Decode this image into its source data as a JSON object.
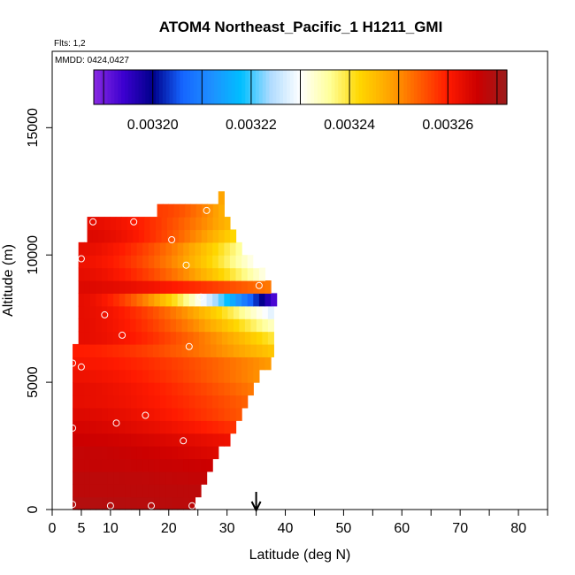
{
  "chart_data": {
    "type": "heatmap",
    "title": "ATOM4 Northeast_Pacific_1 H1211_GMI",
    "flights_label": "Flts: 1,2",
    "dates_label": "MMDD: 0424,0427",
    "xlabel": "Latitude (deg N)",
    "ylabel": "Altitude (m)",
    "xlim": [
      0,
      85
    ],
    "ylim": [
      0,
      18000
    ],
    "x_ticks": [
      0,
      5,
      10,
      20,
      30,
      40,
      50,
      60,
      70,
      80
    ],
    "x_minor_ticks": [
      15,
      25,
      35,
      45,
      55,
      65,
      75,
      85
    ],
    "y_ticks": [
      0,
      5000,
      10000,
      15000
    ],
    "colorbar": {
      "min": 0.003188,
      "max": 0.003272,
      "ticks": [
        0.0032,
        0.00322,
        0.00324,
        0.00326
      ],
      "tick_labels": [
        "0.00320",
        "0.00322",
        "0.00324",
        "0.00326"
      ],
      "colors": [
        "#8a2be2",
        "#3c00d0",
        "#00008b",
        "#1565ff",
        "#1e90ff",
        "#00bfff",
        "#b0dcff",
        "#ffffff",
        "#ffff99",
        "#ffd700",
        "#ffa500",
        "#ff6000",
        "#ff1a00",
        "#cc0000",
        "#9b1c1c"
      ]
    },
    "arrow_latitude": 35,
    "altitude_bins": [
      {
        "alt": [
          0,
          500
        ],
        "lat": [
          3.5,
          24.5
        ],
        "values": [
          0.003269,
          0.003268
        ]
      },
      {
        "alt": [
          500,
          1000
        ],
        "lat": [
          3.5,
          25.5
        ],
        "values": [
          0.003268,
          0.003268
        ]
      },
      {
        "alt": [
          1000,
          1500
        ],
        "lat": [
          3.5,
          26.5
        ],
        "values": [
          0.003268,
          0.003267
        ]
      },
      {
        "alt": [
          1500,
          2000
        ],
        "lat": [
          3.5,
          27.5
        ],
        "values": [
          0.003267,
          0.003266
        ]
      },
      {
        "alt": [
          2000,
          2500
        ],
        "lat": [
          3.5,
          28.5
        ],
        "values": [
          0.003267,
          0.003264
        ]
      },
      {
        "alt": [
          2500,
          3000
        ],
        "lat": [
          3.5,
          30.5
        ],
        "values": [
          0.003266,
          0.003262
        ]
      },
      {
        "alt": [
          3000,
          3500
        ],
        "lat": [
          3.5,
          31.5
        ],
        "values": [
          0.003265,
          0.003258
        ]
      },
      {
        "alt": [
          3500,
          4000
        ],
        "lat": [
          3.5,
          32.5
        ],
        "values": [
          0.003264,
          0.003255
        ]
      },
      {
        "alt": [
          4000,
          4500
        ],
        "lat": [
          3.5,
          33.5
        ],
        "values": [
          0.003263,
          0.003254
        ]
      },
      {
        "alt": [
          4500,
          5000
        ],
        "lat": [
          3.5,
          34.5
        ],
        "values": [
          0.003263,
          0.003252
        ]
      },
      {
        "alt": [
          5000,
          5500
        ],
        "lat": [
          3.5,
          35.5
        ],
        "values": [
          0.003262,
          0.00325
        ]
      },
      {
        "alt": [
          5500,
          6000
        ],
        "lat": [
          3.5,
          37.5
        ],
        "values": [
          0.003261,
          0.003249
        ]
      },
      {
        "alt": [
          6000,
          6500
        ],
        "lat": [
          3.5,
          38.0
        ],
        "values": [
          0.00326,
          0.003244
        ]
      },
      {
        "alt": [
          6500,
          7000
        ],
        "lat": [
          4.5,
          38.0
        ],
        "values": [
          0.003263,
          0.00324
        ]
      },
      {
        "alt": [
          7000,
          7500
        ],
        "lat": [
          4.5,
          38.0
        ],
        "values": [
          0.003263,
          0.003234
        ]
      },
      {
        "alt": [
          7500,
          8000
        ],
        "lat": [
          4.5,
          38.0
        ],
        "values": [
          0.003263,
          0.003228
        ]
      },
      {
        "alt": [
          8000,
          8500
        ],
        "lat": [
          4.5,
          38.5
        ],
        "values": [
          0.003263,
          0.003193
        ]
      },
      {
        "alt": [
          8500,
          9000
        ],
        "lat": [
          4.5,
          37.5
        ],
        "values": [
          0.003264,
          0.003252
        ]
      },
      {
        "alt": [
          9000,
          9500
        ],
        "lat": [
          4.5,
          36.5
        ],
        "values": [
          0.003263,
          0.003232
        ]
      },
      {
        "alt": [
          9500,
          10000
        ],
        "lat": [
          4.5,
          35.5
        ],
        "values": [
          0.003262,
          0.00323
        ]
      },
      {
        "alt": [
          10000,
          10500
        ],
        "lat": [
          4.5,
          32.5
        ],
        "values": [
          0.003263,
          0.003236
        ]
      },
      {
        "alt": [
          10500,
          11000
        ],
        "lat": [
          6.0,
          31.5
        ],
        "values": [
          0.003264,
          0.003242
        ]
      },
      {
        "alt": [
          11000,
          11500
        ],
        "lat": [
          6.0,
          30.5
        ],
        "values": [
          0.003263,
          0.003246
        ]
      },
      {
        "alt": [
          11500,
          12000
        ],
        "lat": [
          18.0,
          29.5
        ],
        "values": [
          0.003257,
          0.003247
        ]
      },
      {
        "alt": [
          12000,
          12500
        ],
        "lat": [
          28.5,
          29.5
        ],
        "values": [
          0.003248,
          0.003248
        ]
      }
    ],
    "sample_points": [
      {
        "lat": 3.5,
        "alt": 200
      },
      {
        "lat": 10.0,
        "alt": 150
      },
      {
        "lat": 17.0,
        "alt": 150
      },
      {
        "lat": 24.0,
        "alt": 150
      },
      {
        "lat": 22.5,
        "alt": 2700
      },
      {
        "lat": 3.5,
        "alt": 3200
      },
      {
        "lat": 11.0,
        "alt": 3400
      },
      {
        "lat": 16.0,
        "alt": 3700
      },
      {
        "lat": 3.5,
        "alt": 5750
      },
      {
        "lat": 5.0,
        "alt": 5600
      },
      {
        "lat": 23.5,
        "alt": 6400
      },
      {
        "lat": 12.0,
        "alt": 6850
      },
      {
        "lat": 9.0,
        "alt": 7650
      },
      {
        "lat": 25.5,
        "alt": 8350
      },
      {
        "lat": 35.5,
        "alt": 8800
      },
      {
        "lat": 23.0,
        "alt": 9600
      },
      {
        "lat": 5.0,
        "alt": 9850
      },
      {
        "lat": 20.5,
        "alt": 10600
      },
      {
        "lat": 7.0,
        "alt": 11300
      },
      {
        "lat": 14.0,
        "alt": 11300
      },
      {
        "lat": 26.5,
        "alt": 11750
      }
    ]
  }
}
